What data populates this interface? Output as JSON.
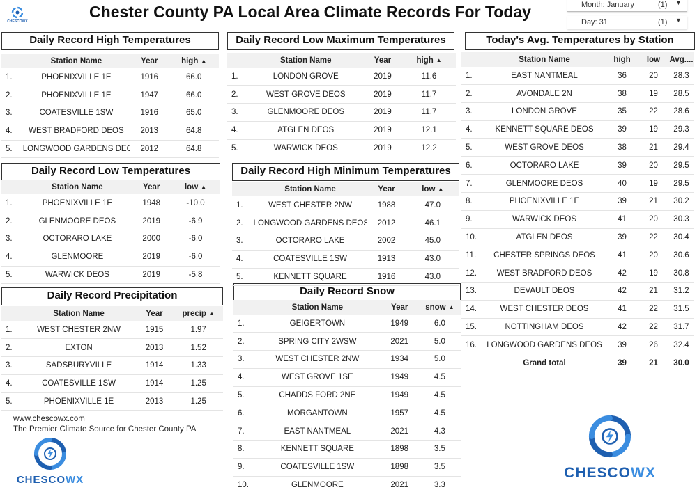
{
  "title": "Chester County PA Local Area Climate Records For Today",
  "brand": {
    "small_logo_text": "CHESCOWX",
    "logo_prefix": "CHESCO",
    "logo_suffix": "WX",
    "color_dark": "#1e5fb0",
    "color_light": "#3b8de0"
  },
  "filters": {
    "month": {
      "label": "Month: January",
      "count": "(1)"
    },
    "day": {
      "label": "Day: 31",
      "count": "(1)"
    }
  },
  "high_temps": {
    "title": "Daily Record High Temperatures",
    "headers": [
      "Station Name",
      "Year",
      "high"
    ],
    "rows": [
      [
        "1.",
        "PHOENIXVILLE 1E",
        "1916",
        "66.0"
      ],
      [
        "2.",
        "PHOENIXVILLE 1E",
        "1947",
        "66.0"
      ],
      [
        "3.",
        "COATESVILLE 1SW",
        "1916",
        "65.0"
      ],
      [
        "4.",
        "WEST BRADFORD DEOS",
        "2013",
        "64.8"
      ],
      [
        "5.",
        "LONGWOOD GARDENS DEOS",
        "2012",
        "64.8"
      ]
    ]
  },
  "low_max_temps": {
    "title": "Daily Record Low Maximum Temperatures",
    "headers": [
      "Station Name",
      "Year",
      "high"
    ],
    "rows": [
      [
        "1.",
        "LONDON GROVE",
        "2019",
        "11.6"
      ],
      [
        "2.",
        "WEST GROVE DEOS",
        "2019",
        "11.7"
      ],
      [
        "3.",
        "GLENMOORE DEOS",
        "2019",
        "11.7"
      ],
      [
        "4.",
        "ATGLEN DEOS",
        "2019",
        "12.1"
      ],
      [
        "5.",
        "WARWICK DEOS",
        "2019",
        "12.2"
      ]
    ]
  },
  "low_temps": {
    "title": "Daily Record Low Temperatures",
    "headers": [
      "Station Name",
      "Year",
      "low"
    ],
    "rows": [
      [
        "1.",
        "PHOENIXVILLE 1E",
        "1948",
        "-10.0"
      ],
      [
        "2.",
        "GLENMOORE DEOS",
        "2019",
        "-6.9"
      ],
      [
        "3.",
        "OCTORARO LAKE",
        "2000",
        "-6.0"
      ],
      [
        "4.",
        "GLENMOORE",
        "2019",
        "-6.0"
      ],
      [
        "5.",
        "WARWICK DEOS",
        "2019",
        "-5.8"
      ]
    ]
  },
  "high_min_temps": {
    "title": "Daily Record High Minimum Temperatures",
    "headers": [
      "Station Name",
      "Year",
      "low"
    ],
    "rows": [
      [
        "1.",
        "WEST CHESTER 2NW",
        "1988",
        "47.0"
      ],
      [
        "2.",
        "LONGWOOD GARDENS DEOS",
        "2012",
        "46.1"
      ],
      [
        "3.",
        "OCTORARO LAKE",
        "2002",
        "45.0"
      ],
      [
        "4.",
        "COATESVILLE 1SW",
        "1913",
        "43.0"
      ],
      [
        "5.",
        "KENNETT SQUARE",
        "1916",
        "43.0"
      ]
    ]
  },
  "precip": {
    "title": "Daily Record Precipitation",
    "headers": [
      "Station Name",
      "Year",
      "precip"
    ],
    "rows": [
      [
        "1.",
        "WEST CHESTER 2NW",
        "1915",
        "1.97"
      ],
      [
        "2.",
        "EXTON",
        "2013",
        "1.52"
      ],
      [
        "3.",
        "SADSBURYVILLE",
        "1914",
        "1.33"
      ],
      [
        "4.",
        "COATESVILLE 1SW",
        "1914",
        "1.25"
      ],
      [
        "5.",
        "PHOENIXVILLE 1E",
        "2013",
        "1.25"
      ]
    ]
  },
  "snow": {
    "title": "Daily Record Snow",
    "headers": [
      "Station Name",
      "Year",
      "snow"
    ],
    "rows": [
      [
        "1.",
        "GEIGERTOWN",
        "1949",
        "6.0"
      ],
      [
        "2.",
        "SPRING CITY 2WSW",
        "2021",
        "5.0"
      ],
      [
        "3.",
        "WEST CHESTER 2NW",
        "1934",
        "5.0"
      ],
      [
        "4.",
        "WEST GROVE 1SE",
        "1949",
        "4.5"
      ],
      [
        "5.",
        "CHADDS FORD 2NE",
        "1949",
        "4.5"
      ],
      [
        "6.",
        "MORGANTOWN",
        "1957",
        "4.5"
      ],
      [
        "7.",
        "EAST NANTMEAL",
        "2021",
        "4.3"
      ],
      [
        "8.",
        "KENNETT SQUARE",
        "1898",
        "3.5"
      ],
      [
        "9.",
        "COATESVILLE 1SW",
        "1898",
        "3.5"
      ],
      [
        "10.",
        "GLENMOORE",
        "2021",
        "3.3"
      ]
    ]
  },
  "avg_temps": {
    "title": "Today's Avg. Temperatures by Station",
    "headers": [
      "Station Name",
      "high",
      "low",
      "Avg...."
    ],
    "rows": [
      [
        "1.",
        "EAST NANTMEAL",
        "36",
        "20",
        "28.3"
      ],
      [
        "2.",
        "AVONDALE 2N",
        "38",
        "19",
        "28.5"
      ],
      [
        "3.",
        "LONDON GROVE",
        "35",
        "22",
        "28.6"
      ],
      [
        "4.",
        "KENNETT SQUARE DEOS",
        "39",
        "19",
        "29.3"
      ],
      [
        "5.",
        "WEST GROVE DEOS",
        "38",
        "21",
        "29.4"
      ],
      [
        "6.",
        "OCTORARO LAKE",
        "39",
        "20",
        "29.5"
      ],
      [
        "7.",
        "GLENMOORE DEOS",
        "40",
        "19",
        "29.5"
      ],
      [
        "8.",
        "PHOENIXVILLE 1E",
        "39",
        "21",
        "30.2"
      ],
      [
        "9.",
        "WARWICK DEOS",
        "41",
        "20",
        "30.3"
      ],
      [
        "10.",
        "ATGLEN DEOS",
        "39",
        "22",
        "30.4"
      ],
      [
        "11.",
        "CHESTER SPRINGS DEOS",
        "41",
        "20",
        "30.6"
      ],
      [
        "12.",
        "WEST BRADFORD DEOS",
        "42",
        "19",
        "30.8"
      ],
      [
        "13.",
        "DEVAULT DEOS",
        "42",
        "21",
        "31.2"
      ],
      [
        "14.",
        "WEST CHESTER DEOS",
        "41",
        "22",
        "31.5"
      ],
      [
        "15.",
        "NOTTINGHAM DEOS",
        "42",
        "22",
        "31.7"
      ],
      [
        "16.",
        "LONGWOOD GARDENS DEOS",
        "39",
        "26",
        "32.4"
      ]
    ],
    "total": [
      "Grand total",
      "39",
      "21",
      "30.0"
    ]
  },
  "footer": {
    "site": "www.chescowx.com",
    "tagline": "The Premier Climate Source for Chester County PA"
  }
}
